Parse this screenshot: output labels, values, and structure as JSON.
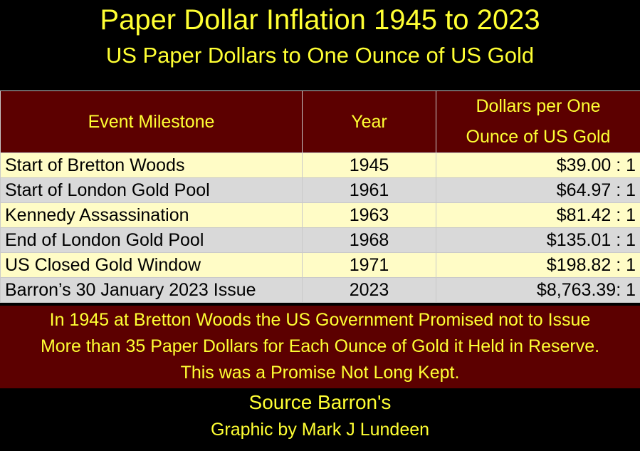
{
  "header": {
    "title": "Paper Dollar Inflation 1945 to 2023",
    "subtitle": "US Paper Dollars to One Ounce of US Gold"
  },
  "table": {
    "columns": [
      "Event Milestone",
      "Year",
      [
        "Dollars per One",
        "Ounce of US Gold"
      ]
    ],
    "rows": [
      [
        "Start of Bretton Woods",
        "1945",
        "$39.00 : 1"
      ],
      [
        "Start of London Gold Pool",
        "1961",
        "$64.97 : 1"
      ],
      [
        "Kennedy Assassination",
        "1963",
        "$81.42 : 1"
      ],
      [
        "End of London Gold Pool",
        "1968",
        "$135.01 : 1"
      ],
      [
        "US Closed Gold Window",
        "1971",
        "$198.82 : 1"
      ],
      [
        "Barron’s 30 January 2023 Issue",
        "2023",
        "$8,763.39: 1"
      ]
    ],
    "note": [
      "In 1945 at Bretton Woods the US Government Promised not to Issue",
      "More than 35 Paper Dollars for Each Ounce of Gold it Held in Reserve.",
      "This was a Promise Not Long Kept."
    ]
  },
  "footer": {
    "source": "Source Barron's",
    "credit": "Graphic by Mark J Lundeen"
  }
}
